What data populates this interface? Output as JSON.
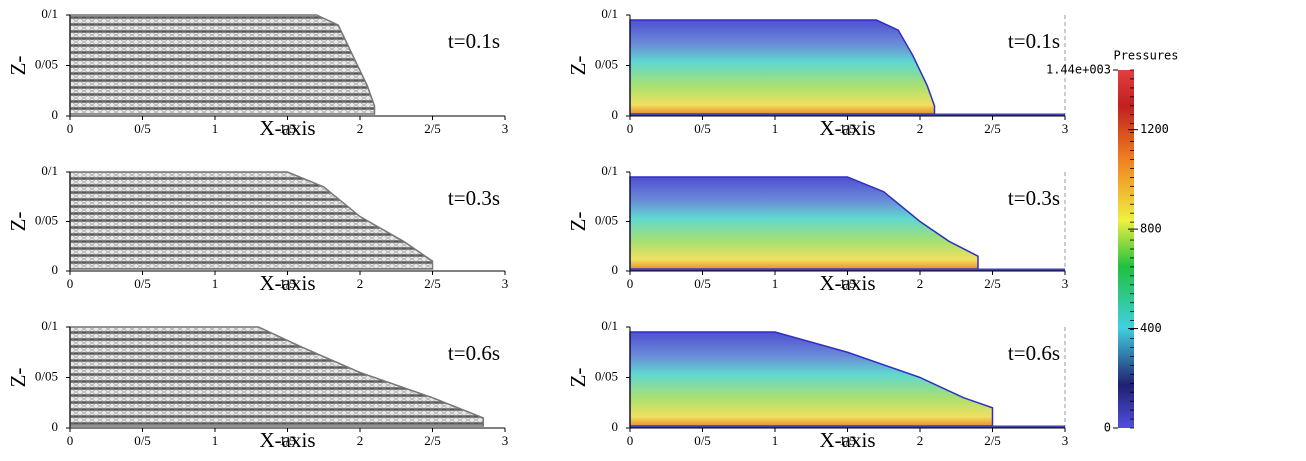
{
  "chart_data": [
    {
      "type": "area",
      "style": "particles",
      "annotation": "t=0.1s",
      "xlabel": "X-axis",
      "ylabel": "Z-",
      "xlim": [
        0,
        3
      ],
      "ylim": [
        0,
        0.1
      ],
      "xticks": [
        0,
        {
          "value": 0.5,
          "label": "0/5"
        },
        1,
        {
          "value": 1.5,
          "label": "1/5"
        },
        2,
        {
          "value": 2.5,
          "label": "2/5"
        },
        3
      ],
      "yticks": [
        0,
        {
          "value": 0.05,
          "label": "0/05"
        },
        {
          "value": 0.1,
          "label": "0/1"
        }
      ],
      "x": [
        0,
        1.7,
        1.85,
        1.95,
        2.05,
        2.1
      ],
      "values": [
        0.1,
        0.1,
        0.09,
        0.06,
        0.03,
        0.01
      ],
      "color": "#777777"
    },
    {
      "type": "area",
      "style": "pressure",
      "annotation": "t=0.1s",
      "xlabel": "X-axis",
      "ylabel": "Z-",
      "xlim": [
        0,
        3
      ],
      "ylim": [
        0,
        0.1
      ],
      "xticks": [
        0,
        {
          "value": 0.5,
          "label": "0/5"
        },
        1,
        {
          "value": 1.5,
          "label": "1/5"
        },
        2,
        {
          "value": 2.5,
          "label": "2/5"
        },
        3
      ],
      "yticks": [
        0,
        {
          "value": 0.05,
          "label": "0/05"
        },
        {
          "value": 0.1,
          "label": "0/1"
        }
      ],
      "x": [
        0,
        1.7,
        1.85,
        1.95,
        2.05,
        2.1
      ],
      "values": [
        0.095,
        0.095,
        0.085,
        0.06,
        0.03,
        0.01
      ],
      "color": "#3030c0"
    },
    {
      "type": "area",
      "style": "particles",
      "annotation": "t=0.3s",
      "xlabel": "X-axis",
      "ylabel": "Z-",
      "xlim": [
        0,
        3
      ],
      "ylim": [
        0,
        0.1
      ],
      "xticks": [
        0,
        {
          "value": 0.5,
          "label": "0/5"
        },
        1,
        {
          "value": 1.5,
          "label": "1/5"
        },
        2,
        {
          "value": 2.5,
          "label": "2/5"
        },
        3
      ],
      "yticks": [
        0,
        {
          "value": 0.05,
          "label": "0/05"
        },
        {
          "value": 0.1,
          "label": "0/1"
        }
      ],
      "x": [
        0,
        1.5,
        1.75,
        2.0,
        2.3,
        2.5
      ],
      "values": [
        0.1,
        0.1,
        0.085,
        0.055,
        0.03,
        0.01
      ],
      "color": "#777777"
    },
    {
      "type": "area",
      "style": "pressure",
      "annotation": "t=0.3s",
      "xlabel": "X-axis",
      "ylabel": "Z-",
      "xlim": [
        0,
        3
      ],
      "ylim": [
        0,
        0.1
      ],
      "xticks": [
        0,
        {
          "value": 0.5,
          "label": "0/5"
        },
        1,
        {
          "value": 1.5,
          "label": "1/5"
        },
        2,
        {
          "value": 2.5,
          "label": "2/5"
        },
        3
      ],
      "yticks": [
        0,
        {
          "value": 0.05,
          "label": "0/05"
        },
        {
          "value": 0.1,
          "label": "0/1"
        }
      ],
      "x": [
        0,
        1.5,
        1.75,
        2.0,
        2.2,
        2.4
      ],
      "values": [
        0.095,
        0.095,
        0.08,
        0.05,
        0.03,
        0.015
      ],
      "color": "#3030c0"
    },
    {
      "type": "area",
      "style": "particles",
      "annotation": "t=0.6s",
      "xlabel": "X-axis",
      "ylabel": "Z-",
      "xlim": [
        0,
        3
      ],
      "ylim": [
        0,
        0.1
      ],
      "xticks": [
        0,
        {
          "value": 0.5,
          "label": "0/5"
        },
        1,
        {
          "value": 1.5,
          "label": "1/5"
        },
        2,
        {
          "value": 2.5,
          "label": "2/5"
        },
        3
      ],
      "yticks": [
        0,
        {
          "value": 0.05,
          "label": "0/05"
        },
        {
          "value": 0.1,
          "label": "0/1"
        }
      ],
      "x": [
        0,
        1.3,
        1.6,
        2.0,
        2.5,
        2.85
      ],
      "values": [
        0.1,
        0.1,
        0.08,
        0.055,
        0.03,
        0.01
      ],
      "color": "#777777"
    },
    {
      "type": "area",
      "style": "pressure",
      "annotation": "t=0.6s",
      "xlabel": "X-axis",
      "ylabel": "Z-",
      "xlim": [
        0,
        3
      ],
      "ylim": [
        0,
        0.1
      ],
      "xticks": [
        0,
        {
          "value": 0.5,
          "label": "0/5"
        },
        1,
        {
          "value": 1.5,
          "label": "1/5"
        },
        2,
        {
          "value": 2.5,
          "label": "2/5"
        },
        3
      ],
      "yticks": [
        0,
        {
          "value": 0.05,
          "label": "0/05"
        },
        {
          "value": 0.1,
          "label": "0/1"
        }
      ],
      "x": [
        0,
        1.0,
        1.5,
        2.0,
        2.3,
        2.5
      ],
      "values": [
        0.095,
        0.095,
        0.075,
        0.05,
        0.03,
        0.02
      ],
      "color": "#3030c0"
    },
    {
      "type": "colorbar",
      "title": "Pressures",
      "ylim": [
        0,
        1440
      ],
      "yticks": [
        {
          "value": 1440,
          "label": "1.44e+003"
        },
        1200,
        800,
        400,
        0
      ]
    }
  ]
}
